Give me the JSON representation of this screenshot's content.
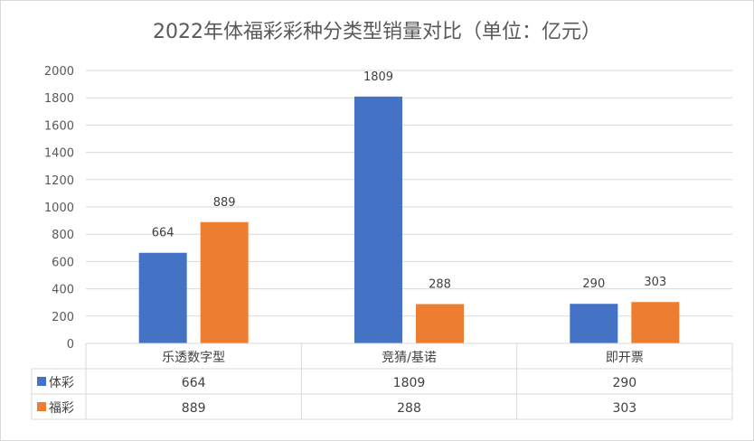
{
  "chart_data": {
    "type": "bar",
    "title": "2022年体福彩彩种分类型销量对比（单位：亿元）",
    "categories": [
      "乐透数字型",
      "竞猜/基诺",
      "即开票"
    ],
    "series": [
      {
        "name": "体彩",
        "color": "#4472c4",
        "values": [
          664,
          1809,
          290
        ]
      },
      {
        "name": "福彩",
        "color": "#ed7d31",
        "values": [
          889,
          288,
          303
        ]
      }
    ],
    "ylim": [
      0,
      2000
    ],
    "yticks": [
      0,
      200,
      400,
      600,
      800,
      1000,
      1200,
      1400,
      1600,
      1800,
      2000
    ],
    "grid": true,
    "data_table": true,
    "legend": "in-table"
  }
}
